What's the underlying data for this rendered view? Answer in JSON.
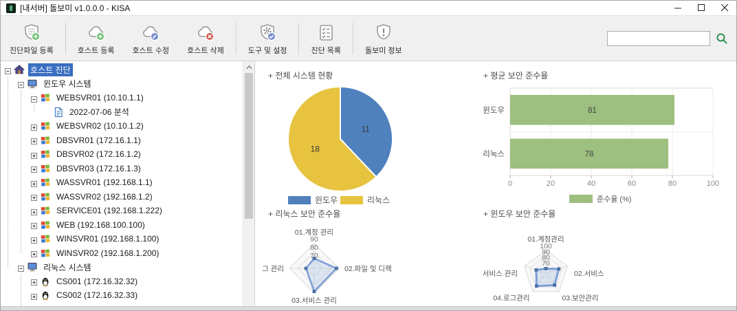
{
  "window": {
    "title": "[내서버] 돌보미 v1.0.0.0 - KISA",
    "controls": [
      {
        "id": "minimize",
        "icon": "minimize-icon"
      },
      {
        "id": "maximize",
        "icon": "maximize-icon"
      },
      {
        "id": "close",
        "icon": "close-icon"
      }
    ]
  },
  "toolbar": {
    "buttons": [
      {
        "id": "register-diagnosis-file",
        "label": "진단파일 등록",
        "icon": "shield-plus"
      },
      {
        "id": "register-host",
        "label": "호스트 등록",
        "icon": "cloud-plus"
      },
      {
        "id": "edit-host",
        "label": "호스트 수정",
        "icon": "cloud-edit"
      },
      {
        "id": "delete-host",
        "label": "호스트 삭제",
        "icon": "cloud-delete"
      },
      {
        "id": "tools-settings",
        "label": "도구 및 설정",
        "icon": "shield-gear"
      },
      {
        "id": "diagnosis-list",
        "label": "진단 목록",
        "icon": "checklist"
      },
      {
        "id": "dolbomi-info",
        "label": "돌보미 정보",
        "icon": "shield-info"
      }
    ],
    "search": {
      "value": "",
      "placeholder": ""
    }
  },
  "tree": {
    "items": [
      {
        "label": "호스트 진단",
        "depth": 0,
        "icon": "home",
        "expander": "minus",
        "selected": true
      },
      {
        "label": "윈도우 시스템",
        "depth": 1,
        "icon": "monitor",
        "expander": "minus"
      },
      {
        "label": "WEBSVR01 (10.10.1.1)",
        "depth": 2,
        "icon": "windows",
        "expander": "minus"
      },
      {
        "label": "2022-07-06 분석",
        "depth": 3,
        "icon": "document",
        "expander": "none"
      },
      {
        "label": "WEBSVR02 (10.10.1.2)",
        "depth": 2,
        "icon": "windows",
        "expander": "plus"
      },
      {
        "label": "DBSVR01 (172.16.1.1)",
        "depth": 2,
        "icon": "windows",
        "expander": "plus"
      },
      {
        "label": "DBSVR02 (172.16.1.2)",
        "depth": 2,
        "icon": "windows",
        "expander": "plus"
      },
      {
        "label": "DBSVR03 (172.16.1.3)",
        "depth": 2,
        "icon": "windows",
        "expander": "plus"
      },
      {
        "label": "WASSVR01 (192.168.1.1)",
        "depth": 2,
        "icon": "windows",
        "expander": "plus"
      },
      {
        "label": "WASSVR02 (192.168.1.2)",
        "depth": 2,
        "icon": "windows",
        "expander": "plus"
      },
      {
        "label": "SERVICE01 (192.168.1.222)",
        "depth": 2,
        "icon": "windows",
        "expander": "plus"
      },
      {
        "label": "WEB (192.168.100.100)",
        "depth": 2,
        "icon": "windows",
        "expander": "plus"
      },
      {
        "label": "WINSVR01 (192.168.1.100)",
        "depth": 2,
        "icon": "windows",
        "expander": "plus"
      },
      {
        "label": "WINSVR02 (192.168.1.200)",
        "depth": 2,
        "icon": "windows",
        "expander": "plus"
      },
      {
        "label": "리눅스 시스템",
        "depth": 1,
        "icon": "monitor",
        "expander": "minus"
      },
      {
        "label": "CS001 (172.16.32.32)",
        "depth": 2,
        "icon": "linux",
        "expander": "plus"
      },
      {
        "label": "CS002 (172.16.32.33)",
        "depth": 2,
        "icon": "linux",
        "expander": "plus"
      },
      {
        "label": "",
        "depth": 2,
        "icon": "linux",
        "expander": "plus",
        "clipped": true
      }
    ]
  },
  "colors": {
    "tree_selection": "#3a6ec0",
    "search_icon_green": "#2f8f4e"
  },
  "chart_data": [
    {
      "type": "pie",
      "title": "+ 전체 시스템 현황",
      "labels": [
        "윈도우",
        "리눅스"
      ],
      "values": [
        11,
        18
      ],
      "colors": [
        "#4f81bd",
        "#e7c33f"
      ],
      "legend_position": "bottom"
    },
    {
      "type": "bar",
      "title": "+ 평균 보안 준수율",
      "orientation": "horizontal",
      "categories": [
        "윈도우",
        "리눅스"
      ],
      "values": [
        81,
        78
      ],
      "xlim": [
        0,
        100
      ],
      "xticks": [
        0,
        20,
        40,
        60,
        80,
        100
      ],
      "bar_color": "#9dbf7f",
      "legend": [
        {
          "label": "준수율 (%)",
          "color": "#9dbf7f"
        }
      ],
      "grid": true
    },
    {
      "type": "radar",
      "title": "+ 리눅스 보안 준수율",
      "axes": [
        "01.계정 관리",
        "02.파일 및 디렉",
        "03.서비스 관리",
        "그 관리"
      ],
      "values": [
        72,
        87,
        88,
        70
      ],
      "ring_labels": [
        90,
        80,
        70
      ],
      "rmin": 60,
      "rmax": 90,
      "line_color": "#7d9ed6",
      "marker_color": "#4a71a8"
    },
    {
      "type": "radar",
      "title": "+ 윈도우 보안 준수율",
      "axes": [
        "01.계정관리",
        "02.서비스",
        "03.보안관리",
        "04.로그관리",
        "서비스 관리"
      ],
      "values": [
        68,
        84,
        86,
        88,
        78
      ],
      "ring_labels": [
        100,
        90,
        80,
        70
      ],
      "rmin": 60,
      "rmax": 100,
      "line_color": "#7d9ed6",
      "marker_color": "#4a71a8"
    }
  ]
}
